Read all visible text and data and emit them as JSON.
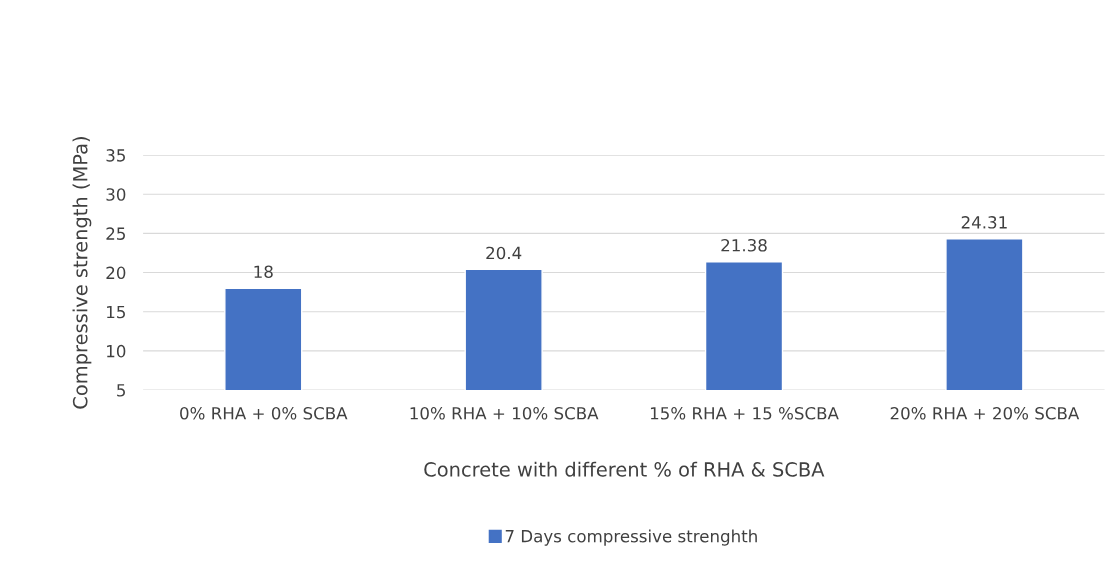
{
  "chart_data": {
    "type": "bar",
    "categories": [
      "0% RHA + 0% SCBA",
      "10% RHA + 10% SCBA",
      "15% RHA + 15 %SCBA",
      "20% RHA + 20% SCBA"
    ],
    "series": [
      {
        "name": "7 Days compressive strenghth",
        "color": "#4472c4",
        "values": [
          18,
          20.4,
          21.38,
          24.31
        ]
      }
    ],
    "xlabel": "Concrete with different % of RHA & SCBA",
    "ylabel": "Compressive strength (MPa)",
    "ylim": [
      5,
      35
    ],
    "yticks": [
      5,
      10,
      15,
      20,
      25,
      30,
      35
    ],
    "grid": "y",
    "legend": "bottom",
    "data_labels": true
  }
}
